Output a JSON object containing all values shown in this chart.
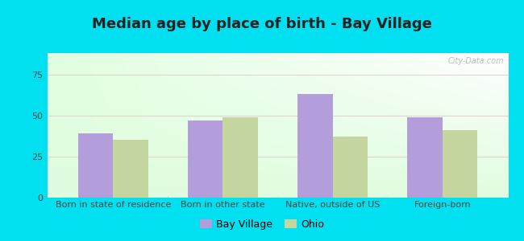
{
  "title": "Median age by place of birth - Bay Village",
  "categories": [
    "Born in state of residence",
    "Born in other state",
    "Native, outside of US",
    "Foreign-born"
  ],
  "bay_village": [
    39,
    47,
    63,
    49
  ],
  "ohio": [
    35,
    49,
    37,
    41
  ],
  "bar_color_bay": "#b39ddb",
  "bar_color_ohio": "#c5d5a0",
  "background_outer": "#00e0f0",
  "ylim": [
    0,
    88
  ],
  "yticks": [
    0,
    25,
    50,
    75
  ],
  "legend_bay": "Bay Village",
  "legend_ohio": "Ohio",
  "title_fontsize": 13,
  "tick_fontsize": 8,
  "legend_fontsize": 9,
  "bar_width": 0.32,
  "grid_color": "#ddddcc",
  "watermark": "City-Data.com"
}
